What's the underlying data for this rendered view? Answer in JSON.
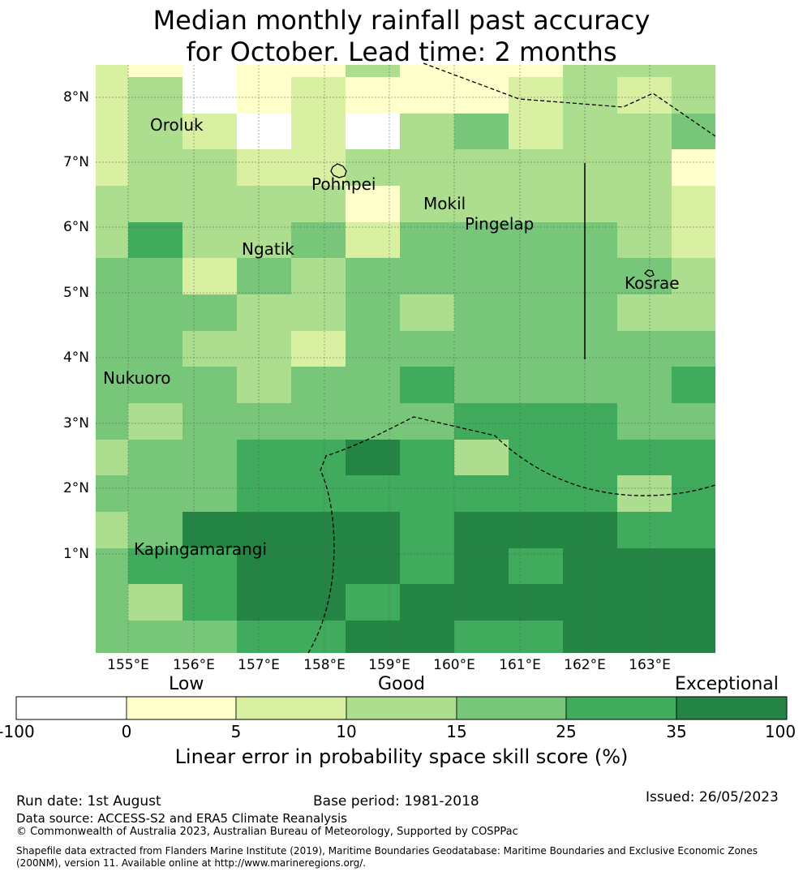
{
  "title": {
    "line1": "Median monthly rainfall past accuracy",
    "line2": "for October. Lead time: 2 months"
  },
  "map": {
    "lon_labels": [
      "155°E",
      "156°E",
      "157°E",
      "158°E",
      "159°E",
      "160°E",
      "161°E",
      "162°E",
      "163°E"
    ],
    "lat_labels": [
      "8°N",
      "7°N",
      "6°N",
      "5°N",
      "4°N",
      "3°N",
      "2°N",
      "1°N"
    ],
    "places": [
      "Oroluk",
      "Pohnpei",
      "Mokil",
      "Pingelap",
      "Ngatik",
      "Kosrae",
      "Nukuoro",
      "Kapingamarangi"
    ],
    "colors": {
      "c0": "#ffffff",
      "c1": "#ffffcc",
      "c2": "#d9f0a3",
      "c3": "#addd8e",
      "c4": "#78c679",
      "c5": "#41ab5d",
      "c6": "#238443"
    }
  },
  "colorbar": {
    "category_labels": [
      "Low",
      "Good",
      "Exceptional"
    ],
    "ticks": [
      "-100",
      "0",
      "5",
      "10",
      "15",
      "25",
      "35",
      "100"
    ],
    "title": "Linear error in probability space skill score (%)"
  },
  "footer": {
    "run_date": "Run date: 1st August",
    "base_period": "Base period: 1981-2018",
    "issued": "Issued: 26/05/2023",
    "data_source": "Data source: ACCESS-S2 and ERA5 Climate Reanalysis",
    "copyright": "© Commonwealth of Australia 2023, Australian Bureau of Meteorology, Supported by COSPPac",
    "shapefile_line1": "Shapefile data extracted from Flanders Marine Institute (2019), Maritime Boundaries Geodatabase: Maritime Boundaries and Exclusive Economic Zones",
    "shapefile_line2": "(200NM), version 11. Available online at http://www.marineregions.org/."
  }
}
